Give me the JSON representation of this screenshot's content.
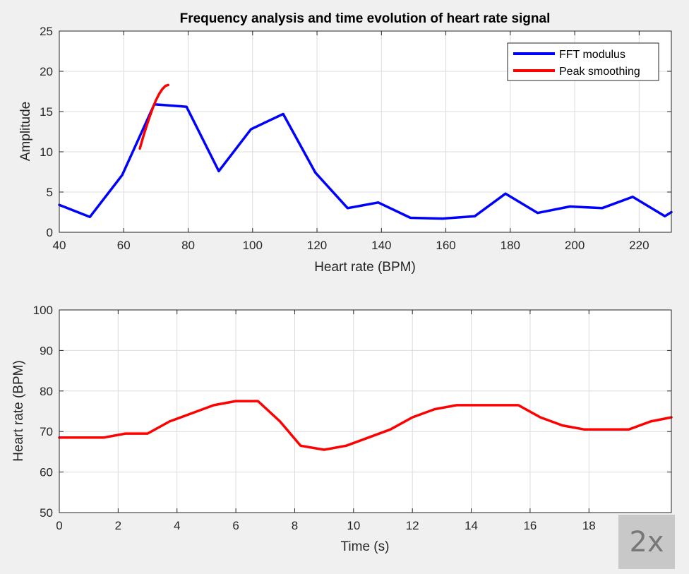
{
  "chart_data": [
    {
      "type": "line",
      "title": "Frequency analysis and time evolution of heart rate signal",
      "xlabel": "Heart rate (BPM)",
      "ylabel": "Amplitude",
      "xlim": [
        40,
        230
      ],
      "ylim": [
        0,
        25
      ],
      "xticks": [
        40,
        60,
        80,
        100,
        120,
        140,
        160,
        180,
        200,
        220
      ],
      "yticks": [
        0,
        5,
        10,
        15,
        20,
        25
      ],
      "grid": true,
      "legend_position": "top-right",
      "series": [
        {
          "name": "FFT modulus",
          "color": "#0000ff",
          "x": [
            40,
            49.5,
            59.5,
            69.5,
            79.5,
            89.5,
            99.5,
            109.5,
            119.5,
            129.5,
            139,
            149,
            159,
            169,
            178.5,
            188.5,
            198.5,
            208.5,
            218,
            228,
            230
          ],
          "y": [
            3.4,
            1.9,
            7.1,
            15.9,
            15.6,
            7.6,
            12.8,
            14.7,
            7.4,
            3.0,
            3.7,
            1.8,
            1.7,
            2.0,
            4.8,
            2.4,
            3.2,
            3.0,
            4.4,
            2.0,
            2.5
          ]
        },
        {
          "name": "Peak smoothing",
          "color": "#ff0000",
          "x": [
            65,
            66,
            67,
            68,
            69,
            70,
            71,
            72,
            73,
            73.8
          ],
          "y": [
            10.4,
            11.8,
            13.1,
            14.3,
            15.4,
            16.4,
            17.2,
            17.8,
            18.2,
            18.3
          ]
        }
      ]
    },
    {
      "type": "line",
      "title": "",
      "xlabel": "Time (s)",
      "ylabel": "Heart rate (BPM)",
      "xlim": [
        0,
        20.8
      ],
      "ylim": [
        50,
        100
      ],
      "xticks": [
        0,
        2,
        4,
        6,
        8,
        10,
        12,
        14,
        16,
        18
      ],
      "yticks": [
        50,
        60,
        70,
        80,
        90,
        100
      ],
      "grid": true,
      "series": [
        {
          "color": "#ff0000",
          "x": [
            0,
            1.5,
            2.25,
            3.0,
            3.75,
            4.5,
            5.25,
            6.0,
            6.75,
            7.5,
            8.2,
            9.0,
            9.75,
            10.5,
            11.25,
            12.0,
            12.75,
            13.5,
            14.25,
            15.0,
            15.6,
            16.35,
            17.1,
            17.85,
            18.6,
            19.35,
            20.1,
            20.8
          ],
          "y": [
            68.5,
            68.5,
            69.5,
            69.5,
            72.5,
            74.5,
            76.5,
            77.5,
            77.5,
            72.5,
            66.5,
            65.5,
            66.5,
            68.5,
            70.5,
            73.5,
            75.5,
            76.5,
            76.5,
            76.5,
            76.5,
            73.5,
            71.5,
            70.5,
            70.5,
            70.5,
            72.5,
            73.5
          ]
        }
      ]
    }
  ],
  "overlay": {
    "speed_label": "2x"
  }
}
